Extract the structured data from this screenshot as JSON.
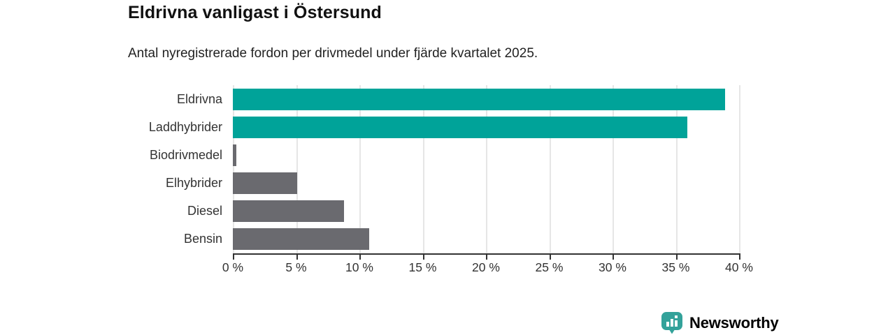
{
  "title": "Eldrivna vanligast i Östersund",
  "subtitle": "Antal nyregistrerade fordon per drivmedel under fjärde kvartalet 2025.",
  "chart_data": {
    "type": "bar",
    "orientation": "horizontal",
    "title": "Eldrivna vanligast i Östersund",
    "subtitle": "Antal nyregistrerade fordon per drivmedel under fjärde kvartalet 2025.",
    "categories": [
      "Eldrivna",
      "Laddhybrider",
      "Biodrivmedel",
      "Elhybrider",
      "Diesel",
      "Bensin"
    ],
    "values": [
      38.9,
      35.9,
      0.3,
      5.1,
      8.8,
      10.8
    ],
    "unit": "%",
    "xlim": [
      0,
      40
    ],
    "x_tick_step": 5,
    "x_tick_labels": [
      "0 %",
      "5 %",
      "10 %",
      "15 %",
      "20 %",
      "25 %",
      "30 %",
      "35 %",
      "40 %"
    ],
    "grid": true,
    "legend": false,
    "bar_colors": [
      "#00a399",
      "#00a399",
      "#6a6a6f",
      "#6a6a6f",
      "#6a6a6f",
      "#6a6a6f"
    ]
  },
  "colors": {
    "highlight_bar": "#00a399",
    "default_bar": "#6a6a6f",
    "axis": "#333333",
    "gridline": "#e6e6e6",
    "title_text": "#111111",
    "logo_teal": "#2f9e96"
  },
  "branding": {
    "logo_text": "Newsworthy",
    "logo_icon": "bar-chart-speech-bubble-icon"
  }
}
